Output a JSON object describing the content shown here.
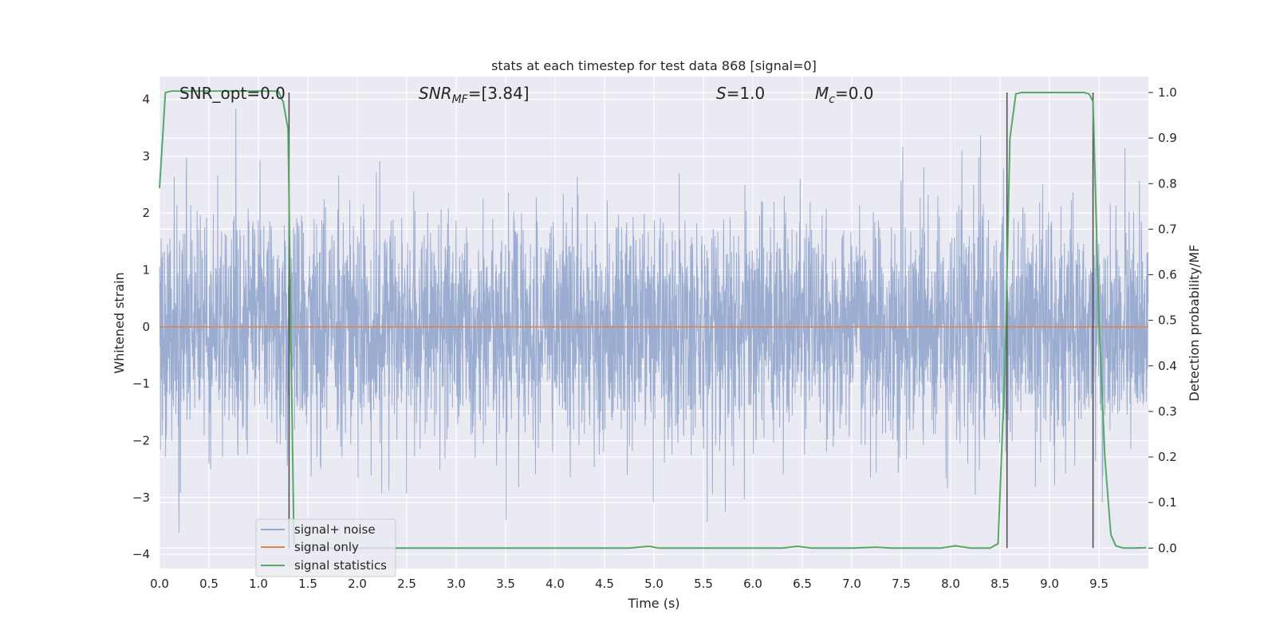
{
  "chart_data": {
    "type": "line",
    "title": "stats at each timestep for test data 868 [signal=0]",
    "xlabel": "Time (s)",
    "ylabel": "Whitened strain",
    "ylabel_right": "Detection probability/MF",
    "xlim": [
      0,
      10
    ],
    "ylim": [
      -4.25,
      4.4
    ],
    "ylim_right": [
      -0.045,
      1.035
    ],
    "xticks": [
      0.0,
      0.5,
      1.0,
      1.5,
      2.0,
      2.5,
      3.0,
      3.5,
      4.0,
      4.5,
      5.0,
      5.5,
      6.0,
      6.5,
      7.0,
      7.5,
      8.0,
      8.5,
      9.0,
      9.5
    ],
    "xtick_labels": [
      "0.0",
      "0.5",
      "1.0",
      "1.5",
      "2.0",
      "2.5",
      "3.0",
      "3.5",
      "4.0",
      "4.5",
      "5.0",
      "5.5",
      "6.0",
      "6.5",
      "7.0",
      "7.5",
      "8.0",
      "8.5",
      "9.0",
      "9.5"
    ],
    "yticks": [
      -4,
      -3,
      -2,
      -1,
      0,
      1,
      2,
      3,
      4
    ],
    "ytick_labels": [
      "−4",
      "−3",
      "−2",
      "−1",
      "0",
      "1",
      "2",
      "3",
      "4"
    ],
    "yticks_right": [
      0.0,
      0.1,
      0.2,
      0.3,
      0.4,
      0.5,
      0.6,
      0.7,
      0.8,
      0.9,
      1.0
    ],
    "ytick_right_labels": [
      "0.0",
      "0.1",
      "0.2",
      "0.3",
      "0.4",
      "0.5",
      "0.6",
      "0.7",
      "0.8",
      "0.9",
      "1.0"
    ],
    "grid": true,
    "legend_placement": "lower-left",
    "annotations": {
      "snr_opt": "SNR_opt=0.0",
      "snr_mf_math": "SNR",
      "snr_mf_sub": "MF",
      "snr_mf_rest": "=[3.84]",
      "s_math": "S",
      "s_rest": "=1.0",
      "mc_math": "M",
      "mc_sub": "c",
      "mc_rest": "=0.0"
    },
    "series": [
      {
        "name": "signal+ noise",
        "color": "#97a9cf",
        "axis": "left",
        "kind": "gaussian-noise",
        "sigma": 1.0,
        "n_samples": 4096,
        "peak_max": 3.96,
        "peak_min": -3.9
      },
      {
        "name": "signal only",
        "color": "#dd8452",
        "axis": "left",
        "x": [
          0,
          10
        ],
        "y": [
          0,
          0
        ]
      },
      {
        "name": "signal statistics",
        "color": "#55a868",
        "axis": "right",
        "x": [
          0.0,
          0.06,
          0.12,
          0.2,
          0.5,
          1.0,
          1.2,
          1.25,
          1.3,
          1.33,
          1.36,
          1.4,
          1.5,
          2.0,
          3.0,
          4.0,
          4.75,
          4.95,
          5.05,
          5.5,
          6.0,
          6.3,
          6.45,
          6.6,
          7.0,
          7.25,
          7.4,
          7.9,
          8.05,
          8.2,
          8.4,
          8.48,
          8.55,
          8.6,
          8.66,
          8.72,
          9.0,
          9.35,
          9.4,
          9.44,
          9.5,
          9.56,
          9.62,
          9.67,
          9.75,
          9.85,
          9.98
        ],
        "y": [
          0.79,
          1.0,
          1.003,
          1.003,
          1.003,
          1.003,
          1.003,
          0.98,
          0.92,
          0.45,
          0.01,
          0.0,
          0.0,
          0.0,
          0.0,
          0.0,
          0.0,
          0.004,
          0.0,
          0.0,
          0.0,
          0.0,
          0.004,
          0.0,
          0.0,
          0.002,
          0.0,
          0.0,
          0.005,
          0.0,
          0.0,
          0.01,
          0.4,
          0.9,
          0.997,
          1.0,
          1.0,
          1.0,
          0.997,
          0.98,
          0.5,
          0.2,
          0.03,
          0.005,
          0.0,
          0.0,
          0.001
        ]
      }
    ],
    "vlines": [
      1.31,
      8.57,
      9.44
    ],
    "vlines_color": "#4a4a4a"
  }
}
